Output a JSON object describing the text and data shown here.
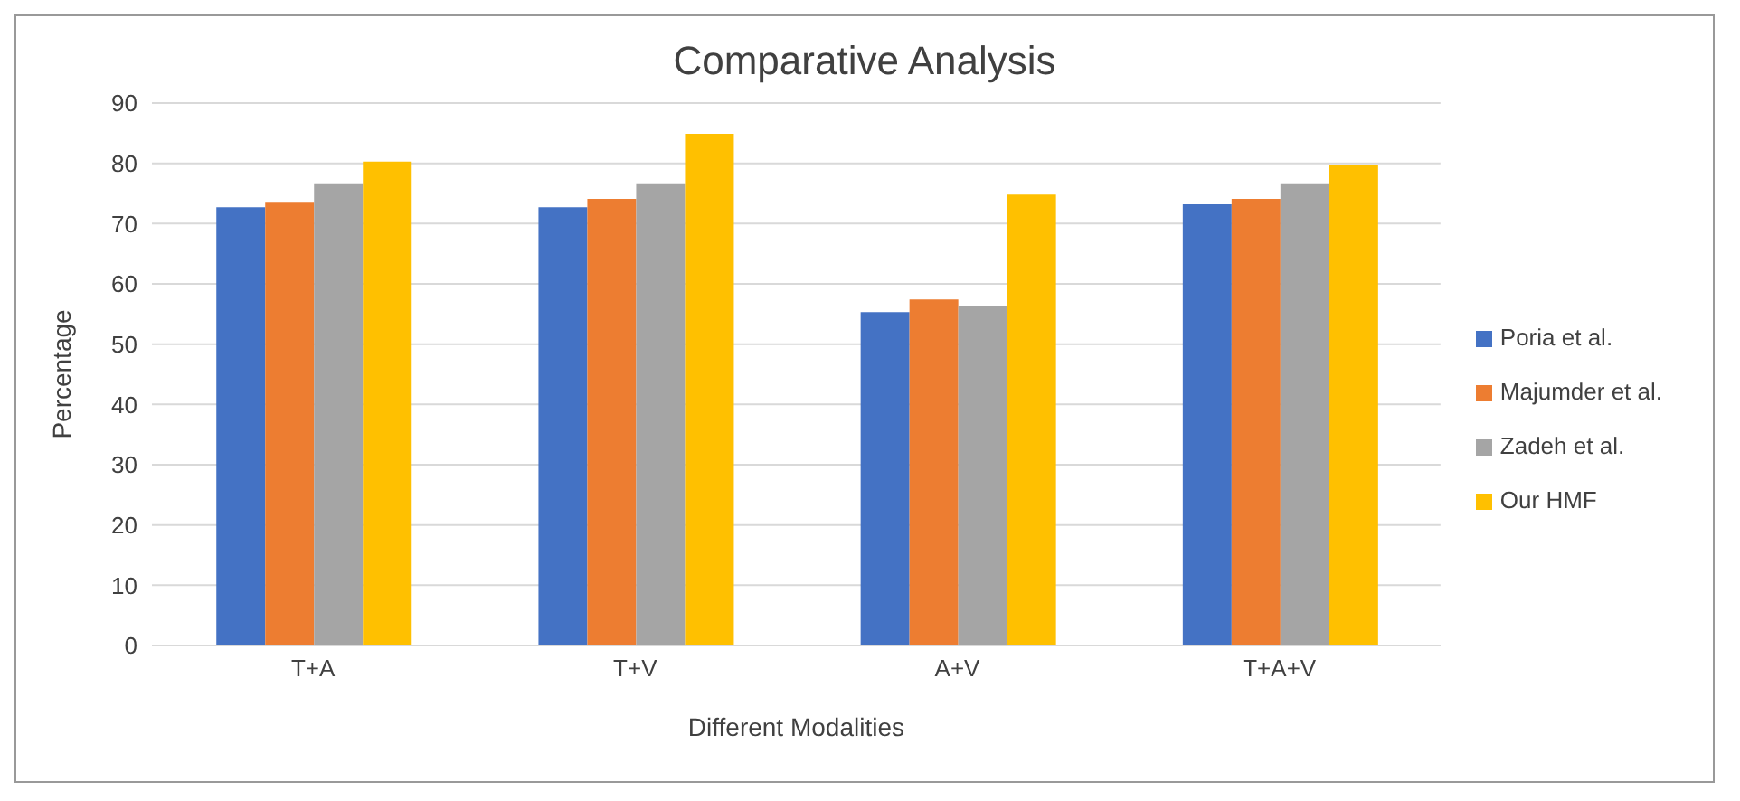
{
  "chart_data": {
    "type": "bar",
    "title": "Comparative Analysis",
    "xlabel": "Different Modalities",
    "ylabel": "Percentage",
    "categories": [
      "T+A",
      "T+V",
      "A+V",
      "T+A+V"
    ],
    "series": [
      {
        "name": "Poria et al.",
        "color": "#4472c4",
        "values": [
          72.7,
          72.7,
          55.3,
          73.2
        ]
      },
      {
        "name": "Majumder et al.",
        "color": "#ed7d31",
        "values": [
          73.6,
          74.1,
          57.4,
          74.1
        ]
      },
      {
        "name": "Zadeh et al.",
        "color": "#a5a5a5",
        "values": [
          76.7,
          76.7,
          56.3,
          76.7
        ]
      },
      {
        "name": "Our HMF",
        "color": "#ffc000",
        "values": [
          80.3,
          84.9,
          74.8,
          79.7
        ]
      }
    ],
    "ylim": [
      0,
      90
    ],
    "yticks": [
      0,
      10,
      20,
      30,
      40,
      50,
      60,
      70,
      80,
      90
    ],
    "grid": "y",
    "legend": "right"
  }
}
